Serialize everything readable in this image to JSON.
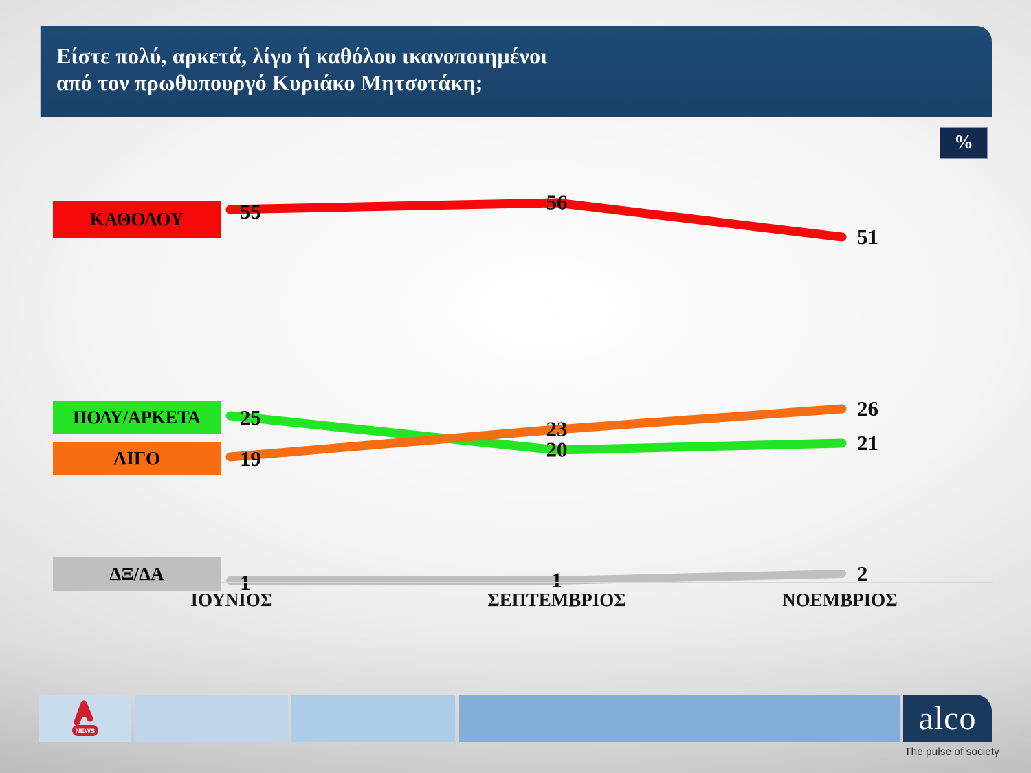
{
  "title": {
    "line1": "Είστε πολύ, αρκετά, λίγο ή καθόλου ικανοποιημένοι",
    "line2": "από τον πρωθυπουργό Κυριάκο Μητσοτάκη;"
  },
  "percent_badge": "%",
  "chart_data": {
    "type": "line",
    "categories": [
      "ΙΟΥΝΙΟΣ",
      "ΣΕΠΤΕΜΒΡΙΟΣ",
      "ΝΟΕΜΒΡΙΟΣ"
    ],
    "series": [
      {
        "name": "ΚΑΘΟΛΟΥ",
        "color": "#f60909",
        "values": [
          55,
          56,
          51
        ]
      },
      {
        "name": "ΠΟΛΥ/ΑΡΚΕΤΑ",
        "color": "#25e425",
        "values": [
          25,
          20,
          21
        ]
      },
      {
        "name": "ΛΙΓΟ",
        "color": "#f66d12",
        "values": [
          19,
          23,
          26
        ]
      },
      {
        "name": "ΔΞ/ΔΑ",
        "color": "#bfbfbf",
        "values": [
          1,
          1,
          2
        ]
      }
    ],
    "title": "Είστε πολύ, αρκετά, λίγο ή καθόλου ικανοποιημένοι από τον πρωθυπουργό Κυριάκο Μητσοτάκη;",
    "xlabel": "",
    "ylabel": "%",
    "ylim": [
      0,
      60
    ],
    "grid": false,
    "legend_position": "left",
    "data_labels": true
  },
  "footer": {
    "alpha_news_label": "NEWS",
    "alco_label": "alco",
    "alco_tagline": "The pulse of society"
  }
}
